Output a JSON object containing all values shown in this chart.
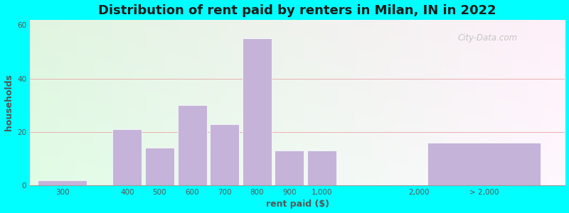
{
  "title": "Distribution of rent paid by renters in Milan, IN in 2022",
  "xlabel": "rent paid ($)",
  "ylabel": "households",
  "background_color": "#00FFFF",
  "bar_color": "#c5b3d9",
  "ylim": [
    0,
    62
  ],
  "yticks": [
    0,
    20,
    40,
    60
  ],
  "values": [
    2,
    21,
    14,
    30,
    23,
    55,
    13,
    13,
    16
  ],
  "positions": [
    1,
    3,
    4,
    5,
    6,
    7,
    8,
    9,
    14
  ],
  "widths": [
    1.5,
    0.9,
    0.9,
    0.9,
    0.9,
    0.9,
    0.9,
    0.9,
    3.5
  ],
  "xtick_positions": [
    1,
    3,
    4,
    5,
    6,
    7,
    8,
    9,
    10,
    12,
    14
  ],
  "xtick_labels": [
    "300",
    "400",
    "500",
    "600",
    "700",
    "800",
    "900",
    "1,000",
    "",
    "2,000",
    "> 2,000"
  ],
  "xlim": [
    0,
    16.5
  ],
  "title_fontsize": 13,
  "axis_label_fontsize": 9,
  "tick_fontsize": 7.5,
  "watermark_text": "City-Data.com"
}
